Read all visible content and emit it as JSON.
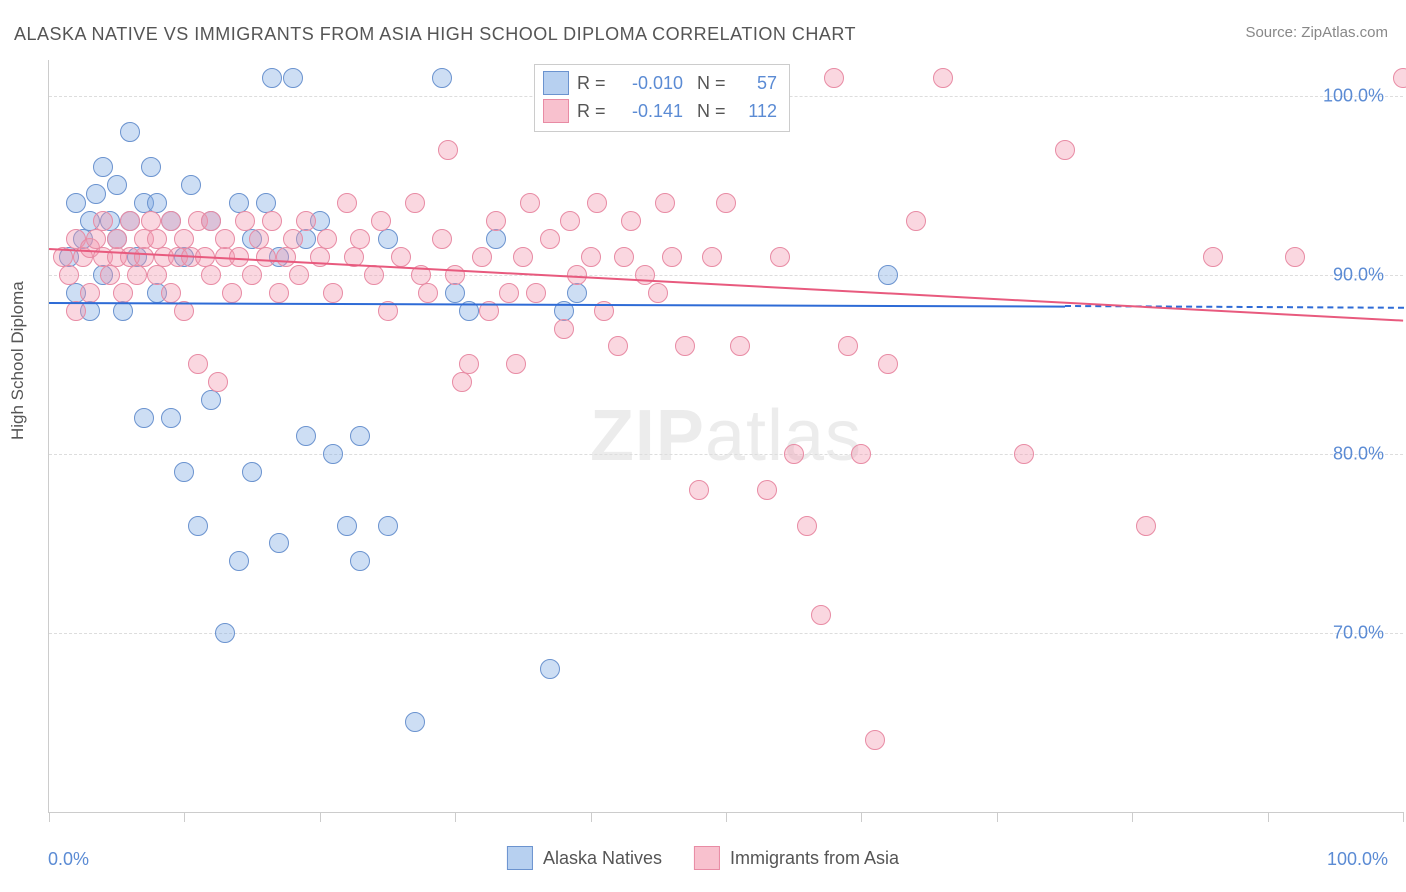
{
  "chart": {
    "type": "scatter",
    "title": "ALASKA NATIVE VS IMMIGRANTS FROM ASIA HIGH SCHOOL DIPLOMA CORRELATION CHART",
    "source_label": "Source: ZipAtlas.com",
    "y_axis_title": "High School Diploma",
    "watermark_zip": "ZIP",
    "watermark_atlas": "atlas",
    "background_color": "#ffffff",
    "grid_color": "#dddddd",
    "axis_color": "#cccccc",
    "title_color": "#555555",
    "title_fontsize": 18,
    "label_fontsize": 18,
    "tick_label_color": "#5b8bd4",
    "xlim": [
      0,
      100
    ],
    "ylim": [
      60,
      102
    ],
    "x_tick_positions": [
      0,
      10,
      20,
      30,
      40,
      50,
      60,
      70,
      80,
      90,
      100
    ],
    "y_grid": [
      {
        "value": 70,
        "label": "70.0%"
      },
      {
        "value": 80,
        "label": "80.0%"
      },
      {
        "value": 90,
        "label": "90.0%"
      },
      {
        "value": 100,
        "label": "100.0%"
      }
    ],
    "x_labels": {
      "min": "0.0%",
      "max": "100.0%"
    },
    "marker_style": "circle",
    "marker_radius": 10,
    "marker_border_width": 1.5,
    "series": [
      {
        "name": "Alaska Natives",
        "fill": "rgba(124,169,227,0.38)",
        "stroke": "#6b93cf",
        "trend_color": "#2e6bd6",
        "trend_dash_extension_color": "#2e6bd6",
        "legend_fill": "rgba(124,169,227,0.55)",
        "R": "-0.010",
        "N": "57",
        "trend": {
          "x1": 0,
          "y1": 88.5,
          "x2_solid": 75,
          "y2_solid": 88.3,
          "x2_dash": 100,
          "y2_dash": 88.2
        },
        "points": [
          {
            "x": 1.5,
            "y": 91
          },
          {
            "x": 2,
            "y": 89
          },
          {
            "x": 2,
            "y": 94
          },
          {
            "x": 2.5,
            "y": 92
          },
          {
            "x": 3,
            "y": 88
          },
          {
            "x": 3,
            "y": 93
          },
          {
            "x": 3.5,
            "y": 94.5
          },
          {
            "x": 4,
            "y": 90
          },
          {
            "x": 4,
            "y": 96
          },
          {
            "x": 4.5,
            "y": 93
          },
          {
            "x": 5,
            "y": 95
          },
          {
            "x": 5,
            "y": 92
          },
          {
            "x": 5.5,
            "y": 88
          },
          {
            "x": 6,
            "y": 93
          },
          {
            "x": 6,
            "y": 98
          },
          {
            "x": 6.5,
            "y": 91
          },
          {
            "x": 7,
            "y": 94
          },
          {
            "x": 7,
            "y": 82
          },
          {
            "x": 7.5,
            "y": 96
          },
          {
            "x": 8,
            "y": 89
          },
          {
            "x": 8,
            "y": 94
          },
          {
            "x": 9,
            "y": 93
          },
          {
            "x": 9,
            "y": 82
          },
          {
            "x": 10,
            "y": 91
          },
          {
            "x": 10,
            "y": 79
          },
          {
            "x": 10.5,
            "y": 95
          },
          {
            "x": 11,
            "y": 76
          },
          {
            "x": 12,
            "y": 93
          },
          {
            "x": 12,
            "y": 83
          },
          {
            "x": 13,
            "y": 70
          },
          {
            "x": 14,
            "y": 94
          },
          {
            "x": 14,
            "y": 74
          },
          {
            "x": 15,
            "y": 79
          },
          {
            "x": 15,
            "y": 92
          },
          {
            "x": 16,
            "y": 94
          },
          {
            "x": 16.5,
            "y": 101
          },
          {
            "x": 17,
            "y": 91
          },
          {
            "x": 17,
            "y": 75
          },
          {
            "x": 18,
            "y": 101
          },
          {
            "x": 19,
            "y": 92
          },
          {
            "x": 19,
            "y": 81
          },
          {
            "x": 20,
            "y": 93
          },
          {
            "x": 21,
            "y": 80
          },
          {
            "x": 22,
            "y": 76
          },
          {
            "x": 23,
            "y": 81
          },
          {
            "x": 23,
            "y": 74
          },
          {
            "x": 25,
            "y": 92
          },
          {
            "x": 25,
            "y": 76
          },
          {
            "x": 27,
            "y": 65
          },
          {
            "x": 29,
            "y": 101
          },
          {
            "x": 30,
            "y": 89
          },
          {
            "x": 31,
            "y": 88
          },
          {
            "x": 33,
            "y": 92
          },
          {
            "x": 37,
            "y": 68
          },
          {
            "x": 38,
            "y": 88
          },
          {
            "x": 39,
            "y": 89
          },
          {
            "x": 62,
            "y": 90
          }
        ]
      },
      {
        "name": "Immigrants from Asia",
        "fill": "rgba(243,151,173,0.38)",
        "stroke": "#e88ba4",
        "trend_color": "#e85a7e",
        "legend_fill": "rgba(243,151,173,0.6)",
        "R": "-0.141",
        "N": "112",
        "trend": {
          "x1": 0,
          "y1": 91.5,
          "x2_solid": 100,
          "y2_solid": 87.5,
          "x2_dash": 100,
          "y2_dash": 87.5
        },
        "points": [
          {
            "x": 1,
            "y": 91
          },
          {
            "x": 1.5,
            "y": 90
          },
          {
            "x": 2,
            "y": 92
          },
          {
            "x": 2,
            "y": 88
          },
          {
            "x": 2.5,
            "y": 91
          },
          {
            "x": 3,
            "y": 91.5
          },
          {
            "x": 3,
            "y": 89
          },
          {
            "x": 3.5,
            "y": 92
          },
          {
            "x": 4,
            "y": 91
          },
          {
            "x": 4,
            "y": 93
          },
          {
            "x": 4.5,
            "y": 90
          },
          {
            "x": 5,
            "y": 91
          },
          {
            "x": 5,
            "y": 92
          },
          {
            "x": 5.5,
            "y": 89
          },
          {
            "x": 6,
            "y": 91
          },
          {
            "x": 6,
            "y": 93
          },
          {
            "x": 6.5,
            "y": 90
          },
          {
            "x": 7,
            "y": 92
          },
          {
            "x": 7,
            "y": 91
          },
          {
            "x": 7.5,
            "y": 93
          },
          {
            "x": 8,
            "y": 90
          },
          {
            "x": 8,
            "y": 92
          },
          {
            "x": 8.5,
            "y": 91
          },
          {
            "x": 9,
            "y": 93
          },
          {
            "x": 9,
            "y": 89
          },
          {
            "x": 9.5,
            "y": 91
          },
          {
            "x": 10,
            "y": 88
          },
          {
            "x": 10,
            "y": 92
          },
          {
            "x": 10.5,
            "y": 91
          },
          {
            "x": 11,
            "y": 93
          },
          {
            "x": 11,
            "y": 85
          },
          {
            "x": 11.5,
            "y": 91
          },
          {
            "x": 12,
            "y": 90
          },
          {
            "x": 12,
            "y": 93
          },
          {
            "x": 12.5,
            "y": 84
          },
          {
            "x": 13,
            "y": 91
          },
          {
            "x": 13,
            "y": 92
          },
          {
            "x": 13.5,
            "y": 89
          },
          {
            "x": 14,
            "y": 91
          },
          {
            "x": 14.5,
            "y": 93
          },
          {
            "x": 15,
            "y": 90
          },
          {
            "x": 15.5,
            "y": 92
          },
          {
            "x": 16,
            "y": 91
          },
          {
            "x": 16.5,
            "y": 93
          },
          {
            "x": 17,
            "y": 89
          },
          {
            "x": 17.5,
            "y": 91
          },
          {
            "x": 18,
            "y": 92
          },
          {
            "x": 18.5,
            "y": 90
          },
          {
            "x": 19,
            "y": 93
          },
          {
            "x": 20,
            "y": 91
          },
          {
            "x": 20.5,
            "y": 92
          },
          {
            "x": 21,
            "y": 89
          },
          {
            "x": 22,
            "y": 94
          },
          {
            "x": 22.5,
            "y": 91
          },
          {
            "x": 23,
            "y": 92
          },
          {
            "x": 24,
            "y": 90
          },
          {
            "x": 24.5,
            "y": 93
          },
          {
            "x": 25,
            "y": 88
          },
          {
            "x": 26,
            "y": 91
          },
          {
            "x": 27,
            "y": 94
          },
          {
            "x": 27.5,
            "y": 90
          },
          {
            "x": 28,
            "y": 89
          },
          {
            "x": 29,
            "y": 92
          },
          {
            "x": 29.5,
            "y": 97
          },
          {
            "x": 30,
            "y": 90
          },
          {
            "x": 30.5,
            "y": 84
          },
          {
            "x": 31,
            "y": 85
          },
          {
            "x": 32,
            "y": 91
          },
          {
            "x": 32.5,
            "y": 88
          },
          {
            "x": 33,
            "y": 93
          },
          {
            "x": 34,
            "y": 89
          },
          {
            "x": 34.5,
            "y": 85
          },
          {
            "x": 35,
            "y": 91
          },
          {
            "x": 35.5,
            "y": 94
          },
          {
            "x": 36,
            "y": 89
          },
          {
            "x": 37,
            "y": 92
          },
          {
            "x": 38,
            "y": 87
          },
          {
            "x": 38.5,
            "y": 93
          },
          {
            "x": 39,
            "y": 90
          },
          {
            "x": 40,
            "y": 91
          },
          {
            "x": 40.5,
            "y": 94
          },
          {
            "x": 41,
            "y": 88
          },
          {
            "x": 42,
            "y": 86
          },
          {
            "x": 42.5,
            "y": 91
          },
          {
            "x": 43,
            "y": 93
          },
          {
            "x": 44,
            "y": 90
          },
          {
            "x": 45,
            "y": 89
          },
          {
            "x": 45.5,
            "y": 94
          },
          {
            "x": 46,
            "y": 91
          },
          {
            "x": 47,
            "y": 86
          },
          {
            "x": 48,
            "y": 78
          },
          {
            "x": 49,
            "y": 91
          },
          {
            "x": 50,
            "y": 94
          },
          {
            "x": 51,
            "y": 86
          },
          {
            "x": 53,
            "y": 78
          },
          {
            "x": 54,
            "y": 91
          },
          {
            "x": 55,
            "y": 80
          },
          {
            "x": 56,
            "y": 76
          },
          {
            "x": 57,
            "y": 71
          },
          {
            "x": 58,
            "y": 101
          },
          {
            "x": 59,
            "y": 86
          },
          {
            "x": 60,
            "y": 80
          },
          {
            "x": 61,
            "y": 64
          },
          {
            "x": 62,
            "y": 85
          },
          {
            "x": 64,
            "y": 93
          },
          {
            "x": 66,
            "y": 101
          },
          {
            "x": 72,
            "y": 80
          },
          {
            "x": 75,
            "y": 97
          },
          {
            "x": 81,
            "y": 76
          },
          {
            "x": 86,
            "y": 91
          },
          {
            "x": 92,
            "y": 91
          },
          {
            "x": 100,
            "y": 101
          }
        ]
      }
    ],
    "legend_bottom": [
      {
        "label": "Alaska Natives",
        "swatch_fill": "rgba(124,169,227,0.55)",
        "swatch_stroke": "#6b93cf"
      },
      {
        "label": "Immigrants from Asia",
        "swatch_fill": "rgba(243,151,173,0.6)",
        "swatch_stroke": "#e88ba4"
      }
    ]
  }
}
